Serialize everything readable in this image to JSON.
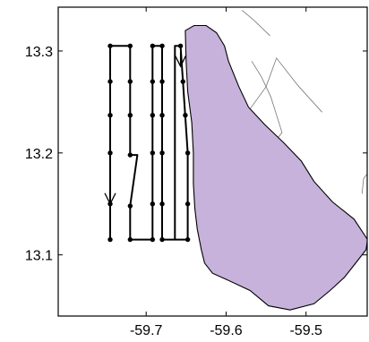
{
  "map": {
    "x_axis": {
      "ticks": [
        {
          "value": -59.7,
          "label": "-59.7"
        },
        {
          "value": -59.6,
          "label": "-59.6"
        },
        {
          "value": -59.5,
          "label": "-59.5"
        }
      ]
    },
    "y_axis": {
      "ticks": [
        {
          "value": 13.3,
          "label": "13.3"
        },
        {
          "value": 13.2,
          "label": "13.2"
        },
        {
          "value": 13.1,
          "label": "13.1"
        }
      ]
    },
    "colors": {
      "land": "#c6b2da",
      "track": "#000000",
      "contour": "#777777",
      "frame": "#000000"
    },
    "survey_track": {
      "points": [
        [
          -59.745,
          13.115
        ],
        [
          -59.745,
          13.305
        ],
        [
          -59.72,
          13.305
        ],
        [
          -59.72,
          13.198
        ],
        [
          -59.711,
          13.198
        ],
        [
          -59.72,
          13.148
        ],
        [
          -59.72,
          13.115
        ],
        [
          -59.692,
          13.115
        ],
        [
          -59.692,
          13.305
        ],
        [
          -59.68,
          13.305
        ],
        [
          -59.68,
          13.115
        ],
        [
          -59.664,
          13.115
        ],
        [
          -59.664,
          13.305
        ],
        [
          -59.657,
          13.305
        ],
        [
          -59.648,
          13.2
        ],
        [
          -59.648,
          13.115
        ],
        [
          -59.664,
          13.115
        ]
      ],
      "stations": [
        [
          -59.745,
          13.305
        ],
        [
          -59.745,
          13.27
        ],
        [
          -59.745,
          13.237
        ],
        [
          -59.745,
          13.2
        ],
        [
          -59.745,
          13.15
        ],
        [
          -59.745,
          13.115
        ],
        [
          -59.72,
          13.305
        ],
        [
          -59.72,
          13.27
        ],
        [
          -59.72,
          13.237
        ],
        [
          -59.72,
          13.198
        ],
        [
          -59.72,
          13.148
        ],
        [
          -59.72,
          13.115
        ],
        [
          -59.692,
          13.305
        ],
        [
          -59.692,
          13.27
        ],
        [
          -59.692,
          13.237
        ],
        [
          -59.692,
          13.2
        ],
        [
          -59.692,
          13.15
        ],
        [
          -59.692,
          13.115
        ],
        [
          -59.68,
          13.305
        ],
        [
          -59.68,
          13.27
        ],
        [
          -59.68,
          13.237
        ],
        [
          -59.68,
          13.2
        ],
        [
          -59.68,
          13.15
        ],
        [
          -59.68,
          13.115
        ],
        [
          -59.657,
          13.305
        ],
        [
          -59.654,
          13.27
        ],
        [
          -59.651,
          13.237
        ],
        [
          -59.648,
          13.2
        ],
        [
          -59.648,
          13.15
        ],
        [
          -59.648,
          13.115
        ]
      ],
      "direction_arrows": [
        {
          "lon": -59.745,
          "lat": 13.15,
          "direction": "down"
        },
        {
          "lon": -59.657,
          "lat": 13.285,
          "direction": "down"
        }
      ]
    },
    "island_outline": [
      [
        -59.651,
        13.32
      ],
      [
        -59.64,
        13.325
      ],
      [
        -59.625,
        13.325
      ],
      [
        -59.612,
        13.318
      ],
      [
        -59.602,
        13.305
      ],
      [
        -59.597,
        13.29
      ],
      [
        -59.584,
        13.265
      ],
      [
        -59.572,
        13.245
      ],
      [
        -59.552,
        13.228
      ],
      [
        -59.528,
        13.21
      ],
      [
        -59.506,
        13.192
      ],
      [
        -59.49,
        13.172
      ],
      [
        -59.467,
        13.152
      ],
      [
        -59.44,
        13.135
      ],
      [
        -59.423,
        13.115
      ],
      [
        -59.425,
        13.105
      ],
      [
        -59.44,
        13.09
      ],
      [
        -59.452,
        13.078
      ],
      [
        -59.47,
        13.065
      ],
      [
        -59.49,
        13.052
      ],
      [
        -59.52,
        13.046
      ],
      [
        -59.547,
        13.05
      ],
      [
        -59.57,
        13.065
      ],
      [
        -59.6,
        13.076
      ],
      [
        -59.617,
        13.082
      ],
      [
        -59.627,
        13.092
      ],
      [
        -59.631,
        13.105
      ],
      [
        -59.636,
        13.125
      ],
      [
        -59.639,
        13.145
      ],
      [
        -59.641,
        13.17
      ],
      [
        -59.641,
        13.2
      ],
      [
        -59.643,
        13.23
      ],
      [
        -59.648,
        13.26
      ],
      [
        -59.65,
        13.29
      ]
    ],
    "depth_contours": [
      [
        [
          -59.568,
          13.29
        ],
        [
          -59.556,
          13.275
        ],
        [
          -59.544,
          13.255
        ],
        [
          -59.53,
          13.22
        ],
        [
          -59.54,
          13.21
        ]
      ],
      [
        [
          -59.565,
          13.2
        ],
        [
          -59.573,
          13.24
        ],
        [
          -59.55,
          13.265
        ],
        [
          -59.537,
          13.293
        ],
        [
          -59.51,
          13.266
        ],
        [
          -59.48,
          13.24
        ]
      ],
      [
        [
          -59.43,
          13.16
        ],
        [
          -59.428,
          13.175
        ],
        [
          -59.413,
          13.19
        ]
      ],
      [
        [
          -59.58,
          13.34
        ],
        [
          -59.565,
          13.33
        ],
        [
          -59.545,
          13.315
        ]
      ]
    ]
  }
}
